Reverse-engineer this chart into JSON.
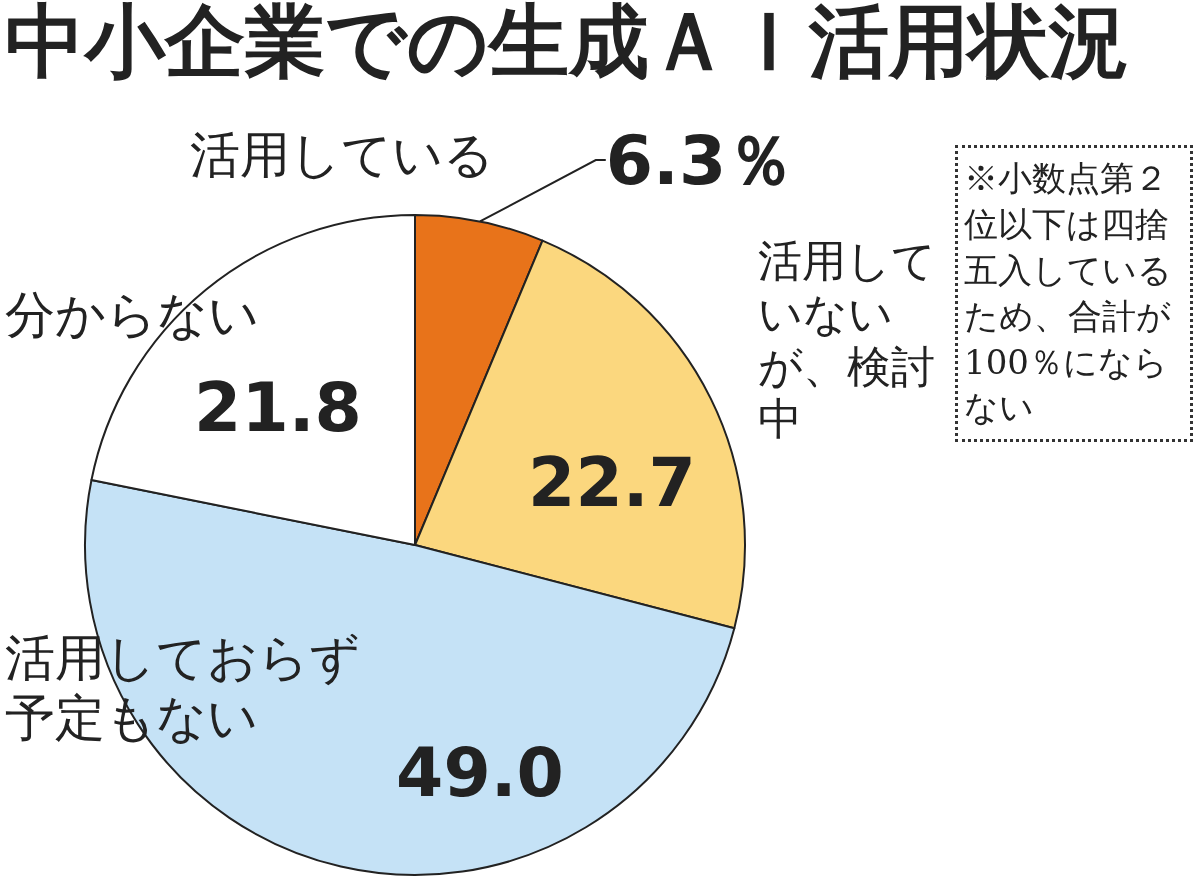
{
  "chart_data": {
    "type": "pie",
    "title": "中小企業での生成ＡＩ活用状況",
    "categories": [
      "活用している",
      "活用していないが、検討中",
      "活用しておらず予定もない",
      "分からない"
    ],
    "values": [
      6.3,
      22.7,
      49.0,
      21.8
    ],
    "value_labels": [
      "6.3％",
      "22.7",
      "49.0",
      "21.8"
    ],
    "colors": [
      "#e8731a",
      "#fbd77e",
      "#c5e2f6",
      "#ffffff"
    ],
    "annotations": [
      "※小数点第２位以下は四捨五入しているため、合計が100％にならない"
    ]
  }
}
